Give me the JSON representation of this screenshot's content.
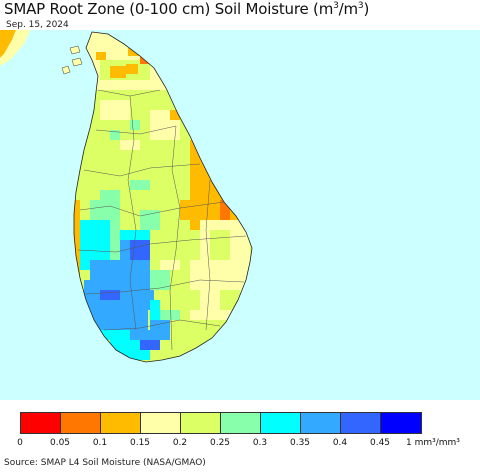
{
  "title": {
    "main": "SMAP Root Zone (0-100 cm) Soil Moisture (m",
    "sup1": "3",
    "mid": "/m",
    "sup2": "3",
    "end": ")"
  },
  "date": "Sep. 15, 2024",
  "colors": {
    "ocean": "#ccffff",
    "border": "#333333",
    "bins": [
      "#ff0000",
      "#ff7700",
      "#ffbb00",
      "#ffffaa",
      "#ddff66",
      "#88ffaa",
      "#00ffff",
      "#33aaff",
      "#3366ff",
      "#0000ff"
    ]
  },
  "legend": {
    "tick_labels": [
      "0",
      "0.05",
      "0.1",
      "0.15",
      "0.2",
      "0.25",
      "0.3",
      "0.35",
      "0.4",
      "0.45"
    ],
    "unit_label": "1 mm³/mm³"
  },
  "source": "Source: SMAP L4 Soil Moisture (NASA/GMAO)"
}
